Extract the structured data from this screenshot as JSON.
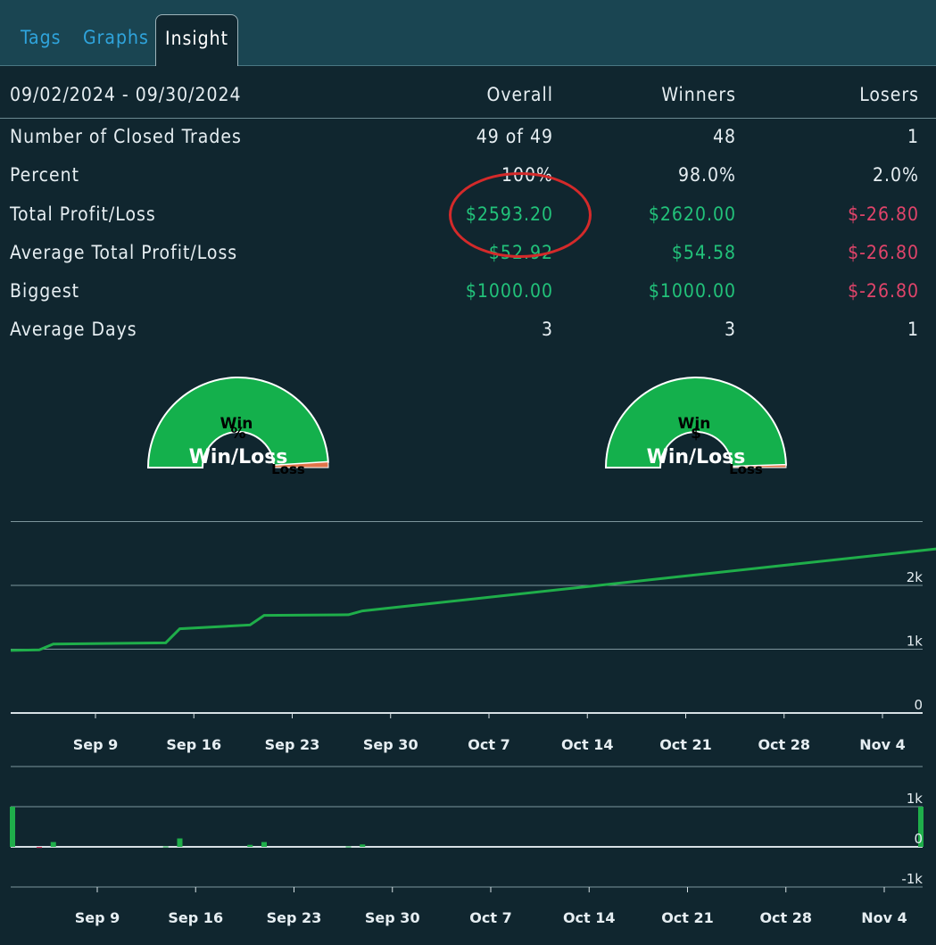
{
  "tabs": [
    {
      "label": "Tags",
      "active": false
    },
    {
      "label": "Graphs",
      "active": false
    },
    {
      "label": "Insight",
      "active": true
    }
  ],
  "stats": {
    "header": {
      "range": "09/02/2024 - 09/30/2024",
      "overall": "Overall",
      "winners": "Winners",
      "losers": "Losers"
    },
    "rows": [
      {
        "label": "Number of Closed Trades",
        "overall": "49 of 49",
        "winners": "48",
        "losers": "1"
      },
      {
        "label": "Percent",
        "overall": "100%",
        "winners": "98.0%",
        "losers": "2.0%"
      },
      {
        "label": "Total Profit/Loss",
        "overall": "$2593.20",
        "winners": "$2620.00",
        "losers": "$-26.80"
      },
      {
        "label": "Average Total Profit/Loss",
        "overall": "$52.92",
        "winners": "$54.58",
        "losers": "$-26.80"
      },
      {
        "label": "Biggest",
        "overall": "$1000.00",
        "winners": "$1000.00",
        "losers": "$-26.80"
      },
      {
        "label": "Average Days",
        "overall": "3",
        "winners": "3",
        "losers": "1"
      }
    ]
  },
  "gauges": [
    {
      "symbol": "%",
      "title": "Win/Loss",
      "win_label": "Win",
      "loss_label": "Loss",
      "win_fraction": 0.98,
      "win_color": "#14b04c",
      "loss_color": "#e0744a"
    },
    {
      "symbol": "$",
      "title": "Win/Loss",
      "win_label": "Win",
      "loss_label": "Loss",
      "win_fraction": 0.99,
      "win_color": "#14b04c",
      "loss_color": "#e0744a"
    }
  ],
  "chart_data": [
    {
      "type": "line",
      "x_tick_labels": [
        "Sep 9",
        "Sep 16",
        "Sep 23",
        "Sep 30",
        "Oct 7",
        "Oct 14",
        "Oct 21",
        "Oct 28",
        "Nov 4"
      ],
      "y_tick_labels": [
        "0",
        "1k",
        "2k"
      ],
      "ylim": [
        0,
        3000
      ],
      "grid": true,
      "line_color": "#1fae4a",
      "series": [
        {
          "x": [
            "2024-09-02",
            "2024-09-05",
            "2024-09-06",
            "2024-09-14",
            "2024-09-15",
            "2024-09-20",
            "2024-09-21",
            "2024-09-27",
            "2024-09-28",
            "2024-11-09"
          ],
          "values": [
            980,
            990,
            1080,
            1100,
            1320,
            1380,
            1530,
            1540,
            1600,
            2600
          ]
        }
      ]
    },
    {
      "type": "bar",
      "x_tick_labels": [
        "Sep 9",
        "Sep 16",
        "Sep 23",
        "Sep 30",
        "Oct 7",
        "Oct 14",
        "Oct 21",
        "Oct 28",
        "Nov 4"
      ],
      "y_tick_labels": [
        "1k",
        "0",
        "-1k"
      ],
      "ylim": [
        -1000,
        1000
      ],
      "grid": true,
      "bar_color": "#1fae4a",
      "neg_bar_color": "#e0446a",
      "x": [
        "2024-09-02",
        "2024-09-05",
        "2024-09-06",
        "2024-09-14",
        "2024-09-15",
        "2024-09-20",
        "2024-09-21",
        "2024-09-27",
        "2024-09-28",
        "2024-11-09"
      ],
      "values": [
        1000,
        -26.8,
        120,
        10,
        210,
        50,
        120,
        10,
        60,
        1000
      ]
    }
  ]
}
